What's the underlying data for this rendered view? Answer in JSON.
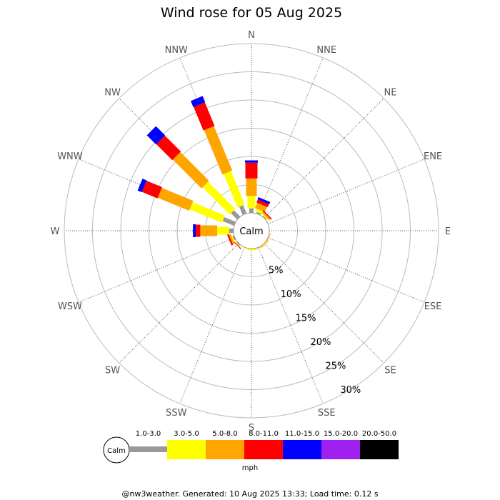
{
  "page": {
    "footer": "@nw3weather. Generated: 10 Aug 2025 13:33; Load time: 0.12 s"
  },
  "chart_data": {
    "type": "wind-rose",
    "title": "Wind rose for 05 Aug 2025",
    "directions": [
      "N",
      "NNE",
      "NE",
      "ENE",
      "E",
      "ESE",
      "SE",
      "SSE",
      "S",
      "SSW",
      "SW",
      "WSW",
      "W",
      "WNW",
      "NW",
      "NNW"
    ],
    "radial_ticks": [
      "5%",
      "10%",
      "15%",
      "20%",
      "25%",
      "30%"
    ],
    "radial_max_percent": 30,
    "calm_label": "Calm",
    "unit": "mph",
    "speed_bins": [
      {
        "label": "1.0-3.0",
        "color": "#999999"
      },
      {
        "label": "3.0-5.0",
        "color": "#ffff00"
      },
      {
        "label": "5.0-8.0",
        "color": "#ffa500"
      },
      {
        "label": "8.0-11.0",
        "color": "#ff0000"
      },
      {
        "label": "11.0-15.0",
        "color": "#0000ff"
      },
      {
        "label": "15.0-20.0",
        "color": "#a020f0"
      },
      {
        "label": "20.0-50.0",
        "color": "#000000"
      }
    ],
    "series_by_direction": {
      "N": [
        0.8,
        2.2,
        3.1,
        2.8,
        0.4,
        0,
        0
      ],
      "NNE": [
        0.3,
        0.5,
        1.0,
        0.6,
        0.4,
        0,
        0
      ],
      "NE": [
        0.2,
        0.2,
        0.3,
        0.2,
        0,
        0,
        0
      ],
      "ENE": [
        0,
        0,
        0,
        0,
        0,
        0,
        0
      ],
      "E": [
        0,
        0,
        0,
        0,
        0,
        0,
        0
      ],
      "ESE": [
        0,
        0.1,
        0.1,
        0,
        0,
        0,
        0
      ],
      "SE": [
        0,
        0.2,
        0.1,
        0,
        0,
        0,
        0
      ],
      "SSE": [
        0,
        0.1,
        0.1,
        0,
        0,
        0,
        0
      ],
      "S": [
        0,
        0.3,
        0,
        0,
        0,
        0,
        0
      ],
      "SSW": [
        0,
        0.1,
        0,
        0,
        0,
        0,
        0
      ],
      "SW": [
        0.2,
        0.1,
        0.1,
        0.1,
        0,
        0,
        0
      ],
      "WSW": [
        0.3,
        0.2,
        0.3,
        0.3,
        0,
        0,
        0
      ],
      "W": [
        0.8,
        2.1,
        3.0,
        0.8,
        0.5,
        0,
        0
      ],
      "WNW": [
        2.2,
        6.2,
        6.0,
        3.0,
        0.8,
        0,
        0
      ],
      "NW": [
        1.6,
        6.8,
        7.2,
        4.0,
        2.3,
        0,
        0
      ],
      "NNW": [
        1.6,
        6.4,
        8.5,
        4.5,
        1.2,
        0,
        0
      ]
    }
  }
}
